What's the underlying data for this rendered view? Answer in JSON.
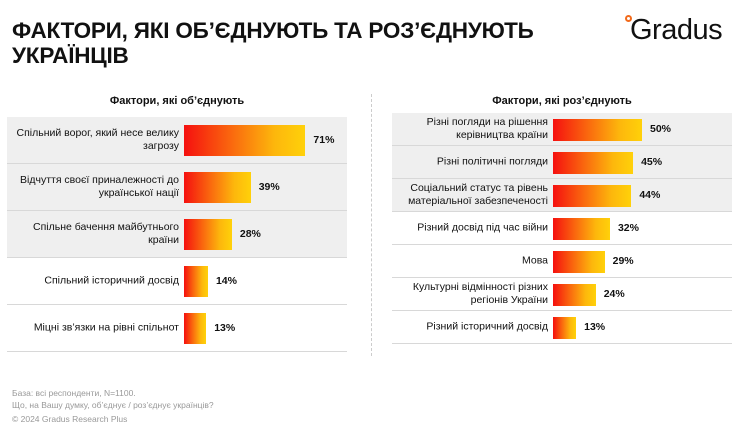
{
  "title": "ФАКТОРИ, ЯКІ ОБ’ЄДНУЮТЬ ТА РОЗ’ЄДНУЮТЬ УКРАЇНЦІВ",
  "logo": "Gradus",
  "colors": {
    "bar_start": "#f5100f",
    "bar_end": "#ffd10a",
    "logo_dot": "#f26a1b"
  },
  "chart_data": [
    {
      "type": "bar",
      "orientation": "horizontal",
      "title": "Фактори, які об’єднують",
      "categories": [
        "Спільний ворог, який несе велику загрозу",
        "Відчуття своєї приналежності до української нації",
        "Спільне бачення майбутнього країни",
        "Спільний історичний досвід",
        "Міцні зв’язки на рівні спільнот"
      ],
      "values": [
        71,
        39,
        28,
        14,
        13
      ],
      "labels": [
        "71%",
        "39%",
        "28%",
        "14%",
        "13%"
      ],
      "unit": "%"
    },
    {
      "type": "bar",
      "orientation": "horizontal",
      "title": "Фактори, які роз’єднують",
      "categories": [
        "Різні погляди на рішення керівництва країни",
        "Різні політичні погляди",
        "Соціальний статус та рівень матеріальної забезпеченості",
        "Різний досвід під час війни",
        "Мова",
        "Культурні відмінності різних регіонів України",
        "Різний історичний досвід"
      ],
      "values": [
        50,
        45,
        44,
        32,
        29,
        24,
        13
      ],
      "labels": [
        "50%",
        "45%",
        "44%",
        "32%",
        "29%",
        "24%",
        "13%"
      ],
      "unit": "%"
    }
  ],
  "footer": {
    "base": "База: всі респонденти, N=1100.",
    "question": "Що, на Вашу думку, об’єднує / роз’єднує українців?",
    "copyright": "© 2024 Gradus Research Plus"
  }
}
